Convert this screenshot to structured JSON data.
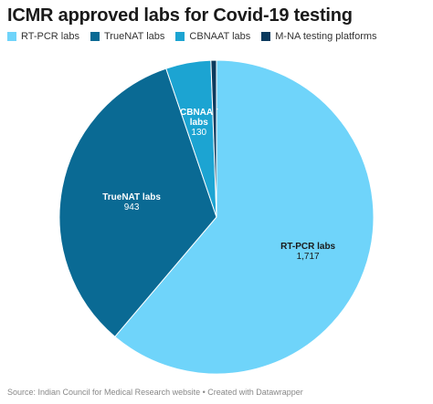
{
  "title": "ICMR approved labs for Covid-19 testing",
  "source": "Source: Indian Council for Medical Research website • Created with Datawrapper",
  "chart_data": {
    "type": "pie",
    "title": "ICMR approved labs for Covid-19 testing",
    "legend_position": "top-left",
    "slices": [
      {
        "name": "RT-PCR labs",
        "value": 1717,
        "value_label": "1,717",
        "color": "#6fd4fa",
        "label_lines": [
          "RT-PCR labs"
        ],
        "text_color": "#1a1a1a"
      },
      {
        "name": "TrueNAT labs",
        "value": 943,
        "value_label": "943",
        "color": "#0a6a94",
        "label_lines": [
          "TrueNAT labs"
        ],
        "text_color": "#ffffff"
      },
      {
        "name": "CBNAAT labs",
        "value": 130,
        "value_label": "130",
        "color": "#1ca4d2",
        "label_lines": [
          "CBNAAT",
          "labs"
        ],
        "text_color": "#ffffff"
      },
      {
        "name": "M-NA testing platforms",
        "value": 16,
        "value_label": "",
        "color": "#0b3a5e",
        "label_lines": [],
        "text_color": "#ffffff"
      }
    ]
  }
}
